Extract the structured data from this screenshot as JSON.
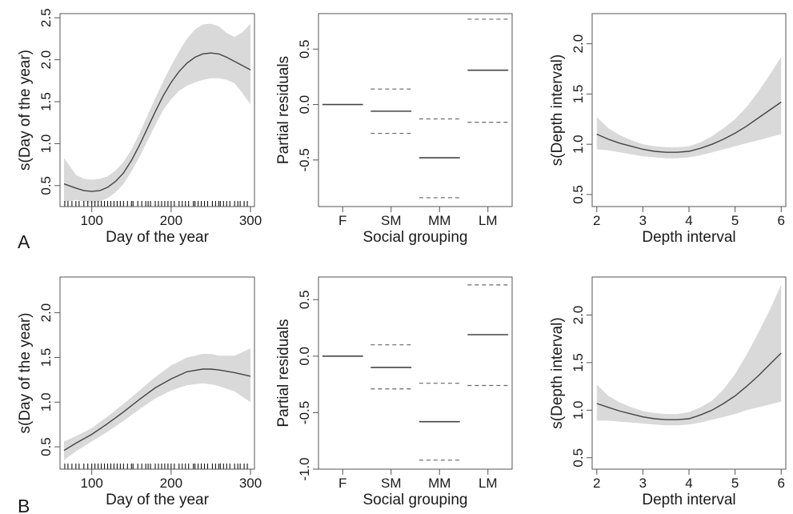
{
  "colors": {
    "band": "#d9d9d9",
    "line": "#444444",
    "axis": "#555555",
    "ci_dash": "#666666"
  },
  "chart_data": [
    {
      "row_label": "A",
      "type": "line",
      "xlabel": "Day of the year",
      "ylabel": "s(Day of the year)",
      "xlim": [
        60,
        305
      ],
      "ylim": [
        0.25,
        2.55
      ],
      "xticks": [
        100,
        200,
        300
      ],
      "xtick_labels": [
        "100",
        "200",
        "300"
      ],
      "yticks": [
        0.5,
        1.0,
        1.5,
        2.0,
        2.5
      ],
      "ytick_labels": [
        "0.5",
        "1.0",
        "1.5",
        "2.0",
        "2.5"
      ],
      "x": [
        65,
        80,
        90,
        100,
        110,
        120,
        130,
        140,
        150,
        160,
        170,
        180,
        190,
        200,
        210,
        220,
        230,
        240,
        250,
        260,
        270,
        280,
        290,
        300
      ],
      "y": [
        0.52,
        0.47,
        0.44,
        0.43,
        0.44,
        0.48,
        0.55,
        0.65,
        0.8,
        0.98,
        1.18,
        1.38,
        1.57,
        1.73,
        1.86,
        1.96,
        2.03,
        2.07,
        2.08,
        2.07,
        2.03,
        1.98,
        1.93,
        1.88
      ],
      "upper": [
        0.83,
        0.63,
        0.58,
        0.57,
        0.58,
        0.61,
        0.68,
        0.78,
        0.93,
        1.12,
        1.33,
        1.54,
        1.74,
        1.93,
        2.1,
        2.25,
        2.36,
        2.42,
        2.43,
        2.4,
        2.32,
        2.27,
        2.33,
        2.43
      ],
      "lower": [
        0.3,
        0.33,
        0.31,
        0.29,
        0.31,
        0.35,
        0.42,
        0.52,
        0.67,
        0.84,
        1.03,
        1.22,
        1.4,
        1.53,
        1.63,
        1.69,
        1.73,
        1.76,
        1.78,
        1.78,
        1.76,
        1.72,
        1.6,
        1.47
      ],
      "rug": [
        66,
        70,
        75,
        80,
        84,
        90,
        95,
        100,
        104,
        108,
        112,
        116,
        120,
        124,
        128,
        132,
        136,
        140,
        145,
        150,
        152,
        158,
        163,
        168,
        171,
        174,
        180,
        184,
        188,
        192,
        196,
        200,
        204,
        210,
        214,
        218,
        222,
        228,
        230,
        234,
        238,
        242,
        246,
        252,
        256,
        260,
        262,
        266,
        270,
        274,
        280,
        284,
        287,
        292,
        296
      ]
    },
    {
      "row_label": "",
      "type": "bar",
      "xlabel": "Social grouping",
      "ylabel": "Partial residuals",
      "categories": [
        "F",
        "SM",
        "MM",
        "LM"
      ],
      "values": [
        0.0,
        -0.06,
        -0.48,
        0.31
      ],
      "upper": [
        0.0,
        0.14,
        -0.13,
        0.77
      ],
      "lower": [
        0.0,
        -0.26,
        -0.84,
        -0.16
      ],
      "ylim": [
        -0.92,
        0.82
      ],
      "yticks": [
        -0.5,
        0.0,
        0.5
      ],
      "ytick_labels": [
        "-0.5",
        "0.0",
        "0.5"
      ]
    },
    {
      "row_label": "",
      "type": "line",
      "xlabel": "Depth interval",
      "ylabel": "s(Depth interval)",
      "xlim": [
        1.9,
        6.1
      ],
      "ylim": [
        0.38,
        2.3
      ],
      "xticks": [
        2,
        3,
        4,
        5,
        6
      ],
      "xtick_labels": [
        "2",
        "3",
        "4",
        "5",
        "6"
      ],
      "yticks": [
        0.5,
        1.0,
        1.5,
        2.0
      ],
      "ytick_labels": [
        "0.5",
        "1.0",
        "1.5",
        "2.0"
      ],
      "x": [
        2.0,
        2.25,
        2.5,
        2.75,
        3.0,
        3.25,
        3.5,
        3.75,
        4.0,
        4.25,
        4.5,
        4.75,
        5.0,
        5.25,
        5.5,
        5.75,
        6.0
      ],
      "y": [
        1.1,
        1.05,
        1.01,
        0.98,
        0.95,
        0.93,
        0.92,
        0.92,
        0.93,
        0.96,
        1.0,
        1.05,
        1.11,
        1.18,
        1.26,
        1.34,
        1.42
      ],
      "upper": [
        1.27,
        1.16,
        1.09,
        1.04,
        1.0,
        0.98,
        0.97,
        0.97,
        0.98,
        1.02,
        1.08,
        1.16,
        1.25,
        1.37,
        1.52,
        1.69,
        1.87
      ],
      "lower": [
        0.95,
        0.94,
        0.92,
        0.9,
        0.88,
        0.87,
        0.86,
        0.86,
        0.87,
        0.89,
        0.92,
        0.95,
        0.98,
        1.01,
        1.04,
        1.07,
        1.1
      ]
    },
    {
      "row_label": "B",
      "type": "line",
      "xlabel": "Day of the year",
      "ylabel": "s(Day of the year)",
      "xlim": [
        60,
        305
      ],
      "ylim": [
        0.25,
        2.4
      ],
      "xticks": [
        100,
        200,
        300
      ],
      "xtick_labels": [
        "100",
        "200",
        "300"
      ],
      "yticks": [
        0.5,
        1.0,
        1.5,
        2.0
      ],
      "ytick_labels": [
        "0.5",
        "1.0",
        "1.5",
        "2.0"
      ],
      "x": [
        65,
        80,
        100,
        120,
        140,
        160,
        180,
        200,
        220,
        240,
        250,
        260,
        280,
        300
      ],
      "y": [
        0.46,
        0.54,
        0.64,
        0.76,
        0.89,
        1.03,
        1.16,
        1.26,
        1.34,
        1.37,
        1.37,
        1.36,
        1.33,
        1.29
      ],
      "upper": [
        0.56,
        0.62,
        0.71,
        0.84,
        0.98,
        1.13,
        1.28,
        1.41,
        1.5,
        1.54,
        1.54,
        1.52,
        1.52,
        1.6
      ],
      "lower": [
        0.35,
        0.45,
        0.56,
        0.67,
        0.79,
        0.92,
        1.04,
        1.13,
        1.19,
        1.21,
        1.2,
        1.18,
        1.12,
        1.0
      ],
      "rug": [
        66,
        70,
        75,
        80,
        84,
        90,
        95,
        100,
        104,
        108,
        112,
        116,
        120,
        124,
        128,
        132,
        136,
        140,
        145,
        150,
        152,
        158,
        163,
        168,
        171,
        174,
        180,
        184,
        188,
        192,
        196,
        200,
        204,
        210,
        214,
        218,
        222,
        228,
        230,
        234,
        238,
        242,
        246,
        252,
        256,
        260,
        262,
        266,
        270,
        274,
        280,
        284,
        287,
        292,
        296
      ]
    },
    {
      "row_label": "",
      "type": "bar",
      "xlabel": "Social grouping",
      "ylabel": "Partial residuals",
      "categories": [
        "F",
        "SM",
        "MM",
        "LM"
      ],
      "values": [
        0.0,
        -0.1,
        -0.58,
        0.19
      ],
      "upper": [
        0.0,
        0.1,
        -0.24,
        0.63
      ],
      "lower": [
        0.0,
        -0.29,
        -0.92,
        -0.26
      ],
      "ylim": [
        -1.0,
        0.7
      ],
      "yticks": [
        -1.0,
        -0.5,
        0.0,
        0.5
      ],
      "ytick_labels": [
        "-1.0",
        "-0.5",
        "0.0",
        "0.5"
      ]
    },
    {
      "row_label": "",
      "type": "line",
      "xlabel": "Depth interval",
      "ylabel": "s(Depth interval)",
      "xlim": [
        1.9,
        6.1
      ],
      "ylim": [
        0.38,
        2.4
      ],
      "xticks": [
        2,
        3,
        4,
        5,
        6
      ],
      "xtick_labels": [
        "2",
        "3",
        "4",
        "5",
        "6"
      ],
      "yticks": [
        0.5,
        1.0,
        1.5,
        2.0
      ],
      "ytick_labels": [
        "0.5",
        "1.0",
        "1.5",
        "2.0"
      ],
      "x": [
        2.0,
        2.25,
        2.5,
        2.75,
        3.0,
        3.25,
        3.5,
        3.75,
        4.0,
        4.25,
        4.5,
        4.75,
        5.0,
        5.25,
        5.5,
        5.75,
        6.0
      ],
      "y": [
        1.07,
        1.03,
        0.99,
        0.96,
        0.93,
        0.91,
        0.9,
        0.9,
        0.91,
        0.95,
        1.0,
        1.07,
        1.15,
        1.25,
        1.36,
        1.48,
        1.6
      ],
      "upper": [
        1.27,
        1.15,
        1.08,
        1.03,
        0.99,
        0.97,
        0.96,
        0.96,
        0.98,
        1.03,
        1.1,
        1.22,
        1.38,
        1.58,
        1.81,
        2.05,
        2.32
      ],
      "lower": [
        0.89,
        0.89,
        0.88,
        0.87,
        0.86,
        0.85,
        0.84,
        0.84,
        0.85,
        0.87,
        0.9,
        0.93,
        0.96,
        1.0,
        1.03,
        1.06,
        1.09
      ]
    }
  ]
}
